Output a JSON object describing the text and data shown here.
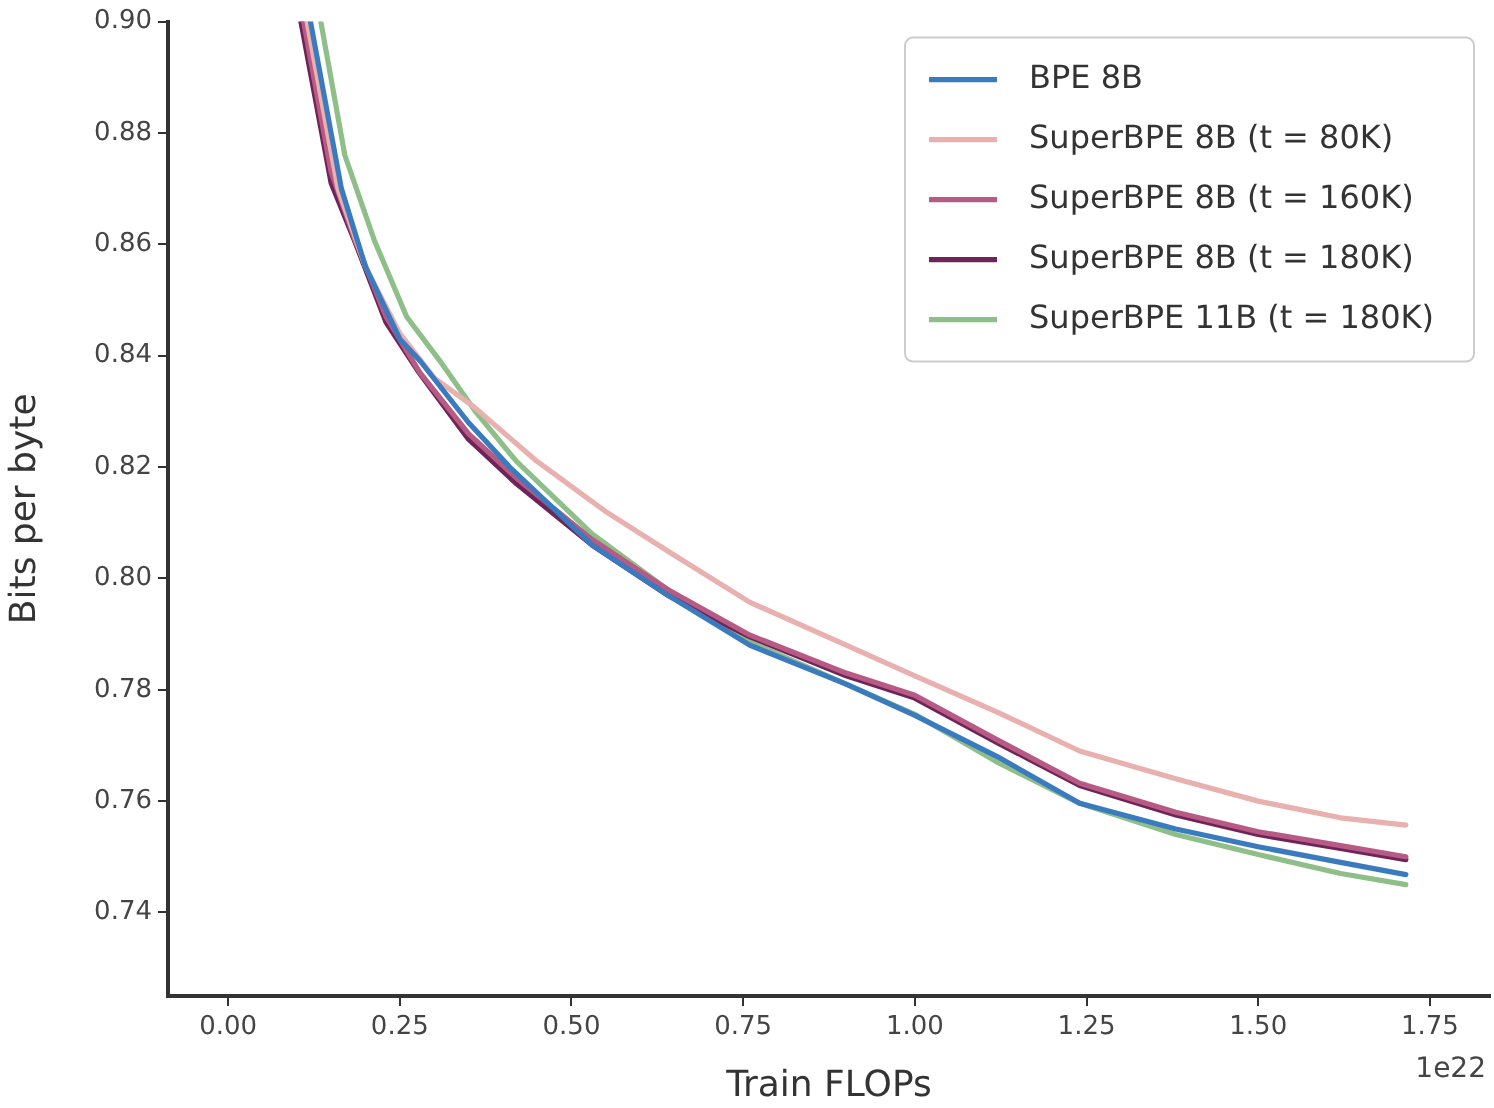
{
  "chart_data": {
    "type": "line",
    "xlabel": "Train FLOPs",
    "ylabel": "Bits per byte",
    "annotations": [
      "1e22"
    ],
    "xlim": [
      -0.0875,
      1.8375
    ],
    "ylim": [
      0.725,
      0.9
    ],
    "xticks": [
      {
        "value": 0,
        "label": "0.00"
      },
      {
        "value": 0.25,
        "label": "0.25"
      },
      {
        "value": 0.5,
        "label": "0.50"
      },
      {
        "value": 0.75,
        "label": "0.75"
      },
      {
        "value": 1,
        "label": "1.00"
      },
      {
        "value": 1.25,
        "label": "1.25"
      },
      {
        "value": 1.5,
        "label": "1.50"
      },
      {
        "value": 1.75,
        "label": "1.75"
      }
    ],
    "yticks": [
      {
        "value": 0.74,
        "label": "0.74"
      },
      {
        "value": 0.76,
        "label": "0.76"
      },
      {
        "value": 0.78,
        "label": "0.78"
      },
      {
        "value": 0.8,
        "label": "0.80"
      },
      {
        "value": 0.82,
        "label": "0.82"
      },
      {
        "value": 0.84,
        "label": "0.84"
      },
      {
        "value": 0.86,
        "label": "0.86"
      },
      {
        "value": 0.88,
        "label": "0.88"
      },
      {
        "value": 0.9,
        "label": "0.90"
      }
    ],
    "grid": false,
    "legend": "top right",
    "marker": "none",
    "line_style": "solid",
    "series": [
      {
        "name": "BPE 8B",
        "color": "#3a7bbf",
        "x": [
          0.12,
          0.165,
          0.2,
          0.25,
          0.28,
          0.35,
          0.41,
          0.53,
          0.64,
          0.76,
          0.9,
          1.0,
          1.12,
          1.24,
          1.38,
          1.5,
          1.62,
          1.715
        ],
        "values": [
          0.9,
          0.87,
          0.856,
          0.843,
          0.839,
          0.828,
          0.82,
          0.806,
          0.797,
          0.788,
          0.781,
          0.7754,
          0.768,
          0.7596,
          0.755,
          0.7518,
          0.749,
          0.7468
        ]
      },
      {
        "name": "SuperBPE 8B (t = 80K)",
        "color": "#e8b0ae",
        "x": [
          0.115,
          0.16,
          0.2,
          0.25,
          0.3,
          0.356,
          0.45,
          0.55,
          0.644,
          0.76,
          0.9,
          1.0,
          1.12,
          1.24,
          1.38,
          1.5,
          1.62,
          1.715
        ],
        "values": [
          0.9,
          0.87,
          0.856,
          0.844,
          0.836,
          0.831,
          0.821,
          0.812,
          0.8046,
          0.7957,
          0.788,
          0.7825,
          0.776,
          0.769,
          0.764,
          0.76,
          0.757,
          0.7557
        ]
      },
      {
        "name": "SuperBPE 8B (t = 160K)",
        "color": "#b75a84",
        "x": [
          0.11,
          0.15,
          0.184,
          0.23,
          0.279,
          0.35,
          0.42,
          0.53,
          0.64,
          0.76,
          0.9,
          1.0,
          1.12,
          1.24,
          1.38,
          1.5,
          1.62,
          1.715
        ],
        "values": [
          0.9,
          0.873,
          0.861,
          0.847,
          0.837,
          0.826,
          0.818,
          0.807,
          0.798,
          0.7898,
          0.783,
          0.779,
          0.771,
          0.7632,
          0.758,
          0.7545,
          0.752,
          0.75
        ]
      },
      {
        "name": "SuperBPE 8B (t = 180K)",
        "color": "#6f2459",
        "x": [
          0.106,
          0.15,
          0.184,
          0.23,
          0.279,
          0.35,
          0.42,
          0.53,
          0.64,
          0.76,
          0.9,
          1.0,
          1.12,
          1.24,
          1.38,
          1.5,
          1.62,
          1.715
        ],
        "values": [
          0.9,
          0.871,
          0.8607,
          0.846,
          0.8368,
          0.825,
          0.817,
          0.806,
          0.797,
          0.7895,
          0.7825,
          0.7785,
          0.7705,
          0.7628,
          0.7575,
          0.754,
          0.7515,
          0.7495
        ]
      },
      {
        "name": "SuperBPE 11B (t = 180K)",
        "color": "#8fbf88",
        "x": [
          0.135,
          0.17,
          0.213,
          0.26,
          0.307,
          0.36,
          0.42,
          0.53,
          0.64,
          0.76,
          0.9,
          1.0,
          1.12,
          1.24,
          1.38,
          1.5,
          1.62,
          1.715
        ],
        "values": [
          0.9,
          0.876,
          0.8607,
          0.847,
          0.8393,
          0.83,
          0.821,
          0.808,
          0.798,
          0.7886,
          0.781,
          0.7756,
          0.767,
          0.7596,
          0.754,
          0.7504,
          0.747,
          0.745
        ]
      }
    ]
  }
}
